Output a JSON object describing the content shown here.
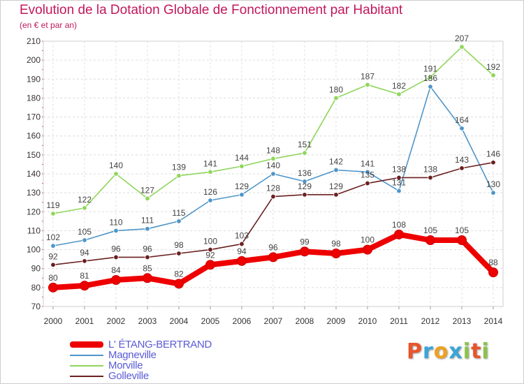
{
  "title": "Evolution de la Dotation Globale de Fonctionnement par Habitant",
  "subtitle": "(en € et par an)",
  "logo": {
    "letters": [
      "P",
      "r",
      "o",
      "x",
      "i",
      "t",
      "i"
    ],
    "colors": [
      "#e8542c",
      "#3aa5d8",
      "#f0a020",
      "#3aa5d8",
      "#8bc34a",
      "#e8542c",
      "#8bc34a"
    ]
  },
  "chart_data": {
    "type": "line",
    "x": [
      "2000",
      "2001",
      "2002",
      "2003",
      "2004",
      "2005",
      "2006",
      "2007",
      "2008",
      "2009",
      "2010",
      "2011",
      "2012",
      "2013",
      "2014"
    ],
    "ylim": [
      70,
      210
    ],
    "yticks": [
      "70",
      "80",
      "90",
      "100",
      "110",
      "120",
      "130",
      "140",
      "150",
      "160",
      "170",
      "180",
      "190",
      "200",
      "210"
    ],
    "grid": true,
    "legend_position": "bottom-left",
    "series": [
      {
        "name": "Morville",
        "color": "#8fd65a",
        "values": [
          119,
          122,
          140,
          127,
          139,
          141,
          144,
          148,
          151,
          180,
          187,
          182,
          191,
          207,
          192
        ]
      },
      {
        "name": "Magneville",
        "color": "#4f95c8",
        "values": [
          102,
          105,
          110,
          111,
          115,
          126,
          129,
          140,
          136,
          142,
          141,
          131,
          186,
          164,
          130
        ]
      },
      {
        "name": "Golleville",
        "color": "#6b1f1f",
        "values": [
          92,
          94,
          96,
          96,
          98,
          100,
          103,
          128,
          129,
          129,
          135,
          138,
          138,
          143,
          146
        ]
      },
      {
        "name": "L' ÉTANG-BERTRAND",
        "color": "#ee0000",
        "values": [
          80,
          81,
          84,
          85,
          82,
          92,
          94,
          96,
          99,
          98,
          100,
          108,
          105,
          105,
          88
        ]
      }
    ],
    "legend": [
      "L' ÉTANG-BERTRAND",
      "Magneville",
      "Morville",
      "Golleville"
    ],
    "legend_colors": [
      "#ee0000",
      "#4f95c8",
      "#8fd65a",
      "#6b1f1f"
    ]
  }
}
